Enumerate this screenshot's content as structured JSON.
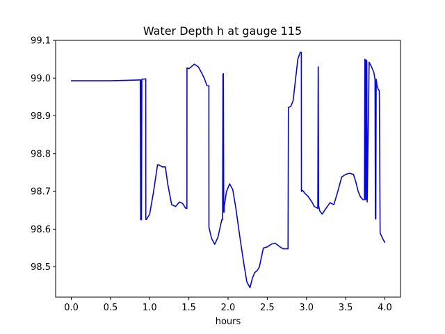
{
  "chart_data": {
    "type": "line",
    "title": "Water Depth h at gauge 115",
    "xlabel": "hours",
    "ylabel": "",
    "xlim": [
      -0.2,
      4.2
    ],
    "ylim": [
      98.42,
      99.1
    ],
    "grid": false,
    "legend": "",
    "colors": {
      "line": "#0000ff",
      "axis": "#000000",
      "background": "#ffffff"
    },
    "xticks": [
      {
        "value": 0.0,
        "label": "0.0"
      },
      {
        "value": 0.5,
        "label": "0.5"
      },
      {
        "value": 1.0,
        "label": "1.0"
      },
      {
        "value": 1.5,
        "label": "1.5"
      },
      {
        "value": 2.0,
        "label": "2.0"
      },
      {
        "value": 2.5,
        "label": "2.5"
      },
      {
        "value": 3.0,
        "label": "3.0"
      },
      {
        "value": 3.5,
        "label": "3.5"
      },
      {
        "value": 4.0,
        "label": "4.0"
      }
    ],
    "yticks": [
      {
        "value": 98.5,
        "label": "98.5"
      },
      {
        "value": 98.6,
        "label": "98.6"
      },
      {
        "value": 98.7,
        "label": "98.7"
      },
      {
        "value": 98.8,
        "label": "98.8"
      },
      {
        "value": 98.9,
        "label": "98.9"
      },
      {
        "value": 99.0,
        "label": "99.0"
      },
      {
        "value": 99.1,
        "label": "99.1"
      }
    ],
    "series": [
      {
        "x": [
          0.0,
          0.5,
          0.87,
          0.88,
          0.885,
          0.89,
          0.895,
          0.9,
          0.95,
          0.951,
          0.96,
          1.0,
          1.05,
          1.1,
          1.12,
          1.16,
          1.2,
          1.23,
          1.28,
          1.33,
          1.38,
          1.42,
          1.46,
          1.475,
          1.476,
          1.5,
          1.53,
          1.57,
          1.62,
          1.66,
          1.7,
          1.73,
          1.755,
          1.756,
          1.79,
          1.83,
          1.87,
          1.92,
          1.93,
          1.935,
          1.94,
          1.945,
          1.95,
          1.951,
          1.98,
          2.02,
          2.06,
          2.1,
          2.15,
          2.2,
          2.24,
          2.28,
          2.31,
          2.34,
          2.37,
          2.4,
          2.45,
          2.5,
          2.55,
          2.6,
          2.65,
          2.7,
          2.74,
          2.765,
          2.77,
          2.8,
          2.83,
          2.86,
          2.89,
          2.92,
          2.935,
          2.936,
          2.95,
          2.98,
          3.02,
          3.07,
          3.1,
          3.145,
          3.15,
          3.151,
          3.155,
          3.156,
          3.17,
          3.2,
          3.25,
          3.3,
          3.35,
          3.4,
          3.45,
          3.5,
          3.55,
          3.6,
          3.63,
          3.66,
          3.69,
          3.72,
          3.74,
          3.745,
          3.75,
          3.755,
          3.76,
          3.765,
          3.77,
          3.775,
          3.8,
          3.83,
          3.86,
          3.875,
          3.88,
          3.881,
          3.885,
          3.89,
          3.895,
          3.9,
          3.92,
          3.93,
          3.94,
          3.95,
          3.98,
          4.0
        ],
        "y": [
          98.993,
          98.993,
          98.995,
          98.995,
          98.625,
          98.995,
          98.625,
          98.997,
          98.998,
          98.626,
          98.626,
          98.64,
          98.7,
          98.77,
          98.77,
          98.765,
          98.765,
          98.72,
          98.665,
          98.66,
          98.672,
          98.668,
          98.655,
          98.655,
          99.027,
          99.025,
          99.03,
          99.037,
          99.03,
          99.015,
          98.998,
          98.98,
          98.98,
          98.605,
          98.575,
          98.56,
          98.578,
          98.625,
          98.625,
          99.01,
          99.012,
          98.645,
          98.645,
          98.66,
          98.7,
          98.72,
          98.705,
          98.655,
          98.58,
          98.51,
          98.46,
          98.445,
          98.47,
          98.485,
          98.49,
          98.5,
          98.55,
          98.553,
          98.56,
          98.563,
          98.555,
          98.548,
          98.548,
          98.548,
          98.922,
          98.925,
          98.94,
          98.995,
          99.05,
          99.068,
          99.068,
          98.7,
          98.703,
          98.695,
          98.687,
          98.672,
          98.66,
          98.655,
          99.03,
          99.03,
          98.662,
          98.662,
          98.648,
          98.64,
          98.655,
          98.67,
          98.665,
          98.7,
          98.738,
          98.745,
          98.748,
          98.745,
          98.725,
          98.7,
          98.685,
          98.678,
          98.678,
          99.05,
          99.048,
          98.678,
          98.678,
          99.048,
          99.045,
          98.672,
          99.042,
          99.03,
          99.015,
          98.996,
          98.635,
          98.627,
          98.627,
          98.997,
          98.99,
          98.98,
          98.968,
          98.968,
          98.59,
          98.585,
          98.572,
          98.565
        ]
      }
    ]
  }
}
